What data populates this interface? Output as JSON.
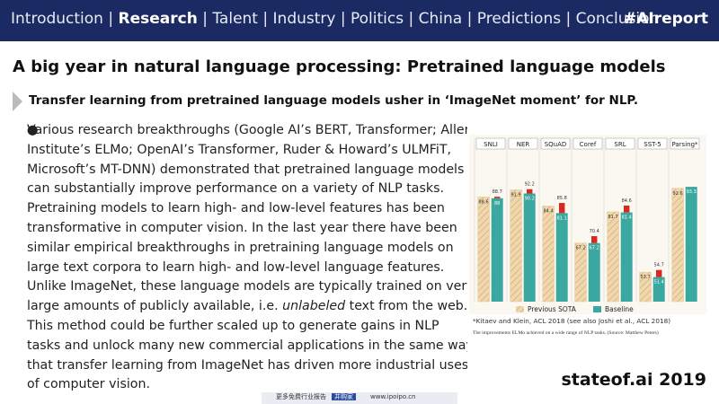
{
  "header": {
    "nav": [
      "Introduction",
      "Research",
      "Talent",
      "Industry",
      "Politics",
      "China",
      "Predictions",
      "Conclusion"
    ],
    "active": 1,
    "separator": "|",
    "tag": "#AIreport"
  },
  "title": "A big year in natural language processing: Pretrained language models",
  "subtitle": "Transfer learning from pretrained language models usher in ‘ImageNet moment’ for NLP.",
  "bullets": [
    {
      "lines": [
        [
          "Various research breakthroughs (Google AI’s BERT, Transformer; Allen"
        ],
        [
          "Institute’s ELMo; OpenAI’s Transformer, Ruder & Howard’s ULMFiT,"
        ],
        [
          "Microsoft’s MT-DNN) demonstrated that pretrained language models"
        ],
        [
          "can substantially improve performance on a variety of NLP tasks."
        ]
      ]
    },
    {
      "lines": [
        [
          "Pretraining models to learn high- and low-level features has been"
        ],
        [
          "transformative in computer vision. In the last year there have been"
        ],
        [
          "similar empirical breakthroughs in pretraining language models on"
        ],
        [
          "large text corpora to learn high- and low-level language features."
        ]
      ]
    },
    {
      "lines": [
        [
          "Unlike ImageNet, these language models are typically trained on very"
        ],
        [
          "large amounts of publicly available, i.e. ",
          "unlabeled",
          " text from the web."
        ],
        [
          "This method could be further scaled up to generate gains in NLP"
        ],
        [
          "tasks and unlock many new commercial applications in the same way"
        ],
        [
          "that transfer learning from ImageNet has driven more industrial uses"
        ],
        [
          "of computer vision."
        ]
      ]
    }
  ],
  "chart_data": {
    "type": "bar",
    "categories": [
      "SNLI",
      "NER",
      "SQuAD",
      "Coref",
      "SRL",
      "SST-5",
      "Parsing*"
    ],
    "ylim": [
      40,
      100
    ],
    "series": [
      {
        "name": "Previous SOTA",
        "color": "#e8c99a",
        "values": [
          88.6,
          91.9,
          84.4,
          67.2,
          81.7,
          53.7,
          92.6
        ]
      },
      {
        "name": "Baseline",
        "color": "#3aa7a0",
        "values": [
          88.0,
          90.2,
          81.1,
          67.2,
          81.4,
          51.4,
          93.3
        ]
      },
      {
        "color": "#d42a20",
        "values": [
          88.7,
          92.2,
          85.8,
          70.4,
          84.6,
          54.7,
          null
        ]
      }
    ],
    "note": "*Kitaev and Klein, ACL 2018   (see also Joshi et al., ACL 2018)",
    "caption": "The improvements ELMo achieved on a wide range of NLP tasks. (Source: Matthew Peters)"
  },
  "footer": {
    "brand": "stateof.ai 2019",
    "watermark": [
      "更多免费行业报告",
      "并购家",
      "www.ipoipo.cn"
    ]
  }
}
